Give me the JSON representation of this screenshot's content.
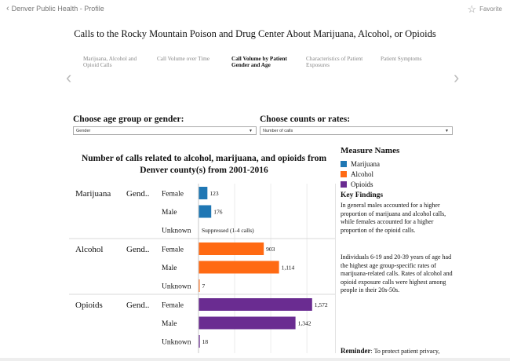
{
  "topbar": {
    "back_label": "Denver Public Health - Profile",
    "favorite_label": "Favorite"
  },
  "title": "Calls to the Rocky Mountain Poison and Drug Center About Marijuana, Alcohol, or Opioids",
  "tabs": [
    {
      "label": "Marijuana, Alcohol and Opioid Calls",
      "active": false
    },
    {
      "label": "Call Volume over Time",
      "active": false
    },
    {
      "label": "Call Volume by Patient Gender and Age",
      "active": true
    },
    {
      "label": "Characteristics of Patient Exposures",
      "active": false
    },
    {
      "label": "Patient Symptoms",
      "active": false
    }
  ],
  "filters": {
    "age_gender": {
      "label": "Choose age group or gender:",
      "value": "Gender"
    },
    "counts_rates": {
      "label": "Choose counts or rates:",
      "value": "Number of calls"
    }
  },
  "chart_title": "Number of calls related to alcohol, marijuana, and opioids from Denver county(s) from 2001-2016",
  "chart_data": {
    "type": "bar",
    "orientation": "horizontal",
    "title": "Number of calls related to alcohol, marijuana, and opioids from Denver county(s) from 2001-2016",
    "xlim": [
      0,
      1900
    ],
    "groups": [
      {
        "substance": "Marijuana",
        "dimension": "Gend..",
        "color": "#1f77b4",
        "rows": [
          {
            "category": "Female",
            "value": 123,
            "label": "123"
          },
          {
            "category": "Male",
            "value": 176,
            "label": "176"
          },
          {
            "category": "Unknown",
            "value": null,
            "label": "Suppressed (1-4 calls)"
          }
        ]
      },
      {
        "substance": "Alcohol",
        "dimension": "Gend..",
        "color": "#ff6a13",
        "rows": [
          {
            "category": "Female",
            "value": 903,
            "label": "903"
          },
          {
            "category": "Male",
            "value": 1114,
            "label": "1,114"
          },
          {
            "category": "Unknown",
            "value": 7,
            "label": "7"
          }
        ]
      },
      {
        "substance": "Opioids",
        "dimension": "Gend..",
        "color": "#6a2c91",
        "rows": [
          {
            "category": "Female",
            "value": 1572,
            "label": "1,572"
          },
          {
            "category": "Male",
            "value": 1342,
            "label": "1,342"
          },
          {
            "category": "Unknown",
            "value": 18,
            "label": "18"
          }
        ]
      }
    ]
  },
  "legend": {
    "title": "Measure Names",
    "items": [
      {
        "label": "Marijuana",
        "color": "#1f77b4"
      },
      {
        "label": "Alcohol",
        "color": "#ff6a13"
      },
      {
        "label": "Opioids",
        "color": "#6a2c91"
      }
    ]
  },
  "key_findings": {
    "title": "Key Findings",
    "paragraphs": [
      "In general males accounted for a higher proportion of marijuana and alcohol calls, while females accounted for a higher proportion of the opioid calls.",
      "Individuals 6-19 and 20-39 years of age had the highest age group-specific rates of marijuana-related calls. Rates of alcohol and opioid exposure calls were highest among people in their 20s-50s."
    ]
  },
  "reminder": {
    "label": "Reminder",
    "text": ": To protect patient privacy,"
  }
}
